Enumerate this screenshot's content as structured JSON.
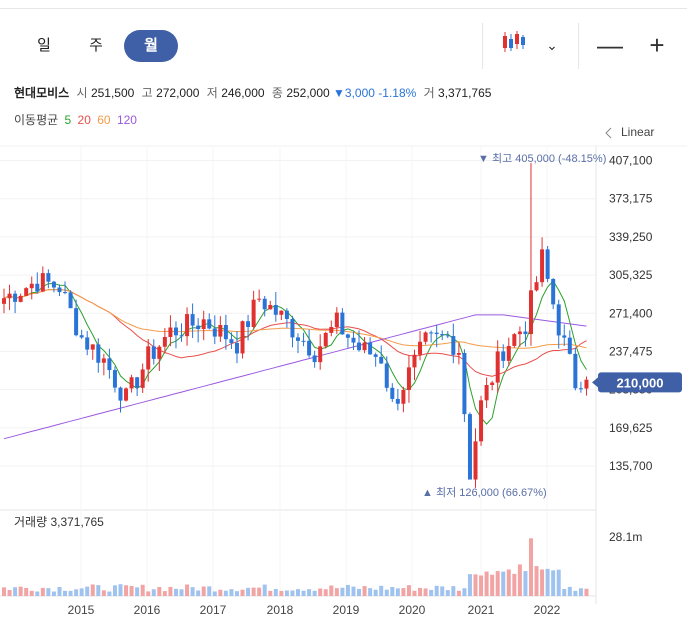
{
  "periods": [
    {
      "label": "일",
      "active": false
    },
    {
      "label": "주",
      "active": false
    },
    {
      "label": "월",
      "active": true
    }
  ],
  "toolbar": {
    "chart_type_icon": "candlestick-icon",
    "dropdown_icon": "chevron-down-icon",
    "zoom_out": "—",
    "zoom_in": "+"
  },
  "quote": {
    "name": "현대모비스",
    "open_label": "시",
    "open": "251,500",
    "high_label": "고",
    "high": "272,000",
    "low_label": "저",
    "low": "246,000",
    "close_label": "종",
    "close": "252,000",
    "change": "▼3,000 -1.18%",
    "volume_label": "거",
    "volume": "3,371,765"
  },
  "moving_average": {
    "label": "이동평균",
    "periods": [
      {
        "value": "5",
        "color": "#2ca02c"
      },
      {
        "value": "20",
        "color": "#e8504c"
      },
      {
        "value": "60",
        "color": "#f39c4a"
      },
      {
        "value": "120",
        "color": "#9b59e0"
      }
    ]
  },
  "scale_label": "Linear",
  "colors": {
    "up": "#e03030",
    "down": "#2a74d8",
    "current": "#3f5fa6"
  },
  "chart_data": {
    "type": "candlestick",
    "y_ticks": [
      "407,100",
      "373,175",
      "339,250",
      "305,325",
      "271,400",
      "237,475",
      "203,550",
      "169,625",
      "135,700"
    ],
    "ylim": [
      118000,
      420000
    ],
    "x_ticks": [
      "2015",
      "2016",
      "2017",
      "2018",
      "2019",
      "2020",
      "2021",
      "2022"
    ],
    "current_price": "210,000",
    "annotations": {
      "max": "▼ 최고 405,000 (-48.15%)",
      "min": "▲ 최저 126,000 (66.67%)"
    },
    "volume": {
      "label": "거래량",
      "value": "3,371,765",
      "axis_tick": "28.1m"
    }
  }
}
